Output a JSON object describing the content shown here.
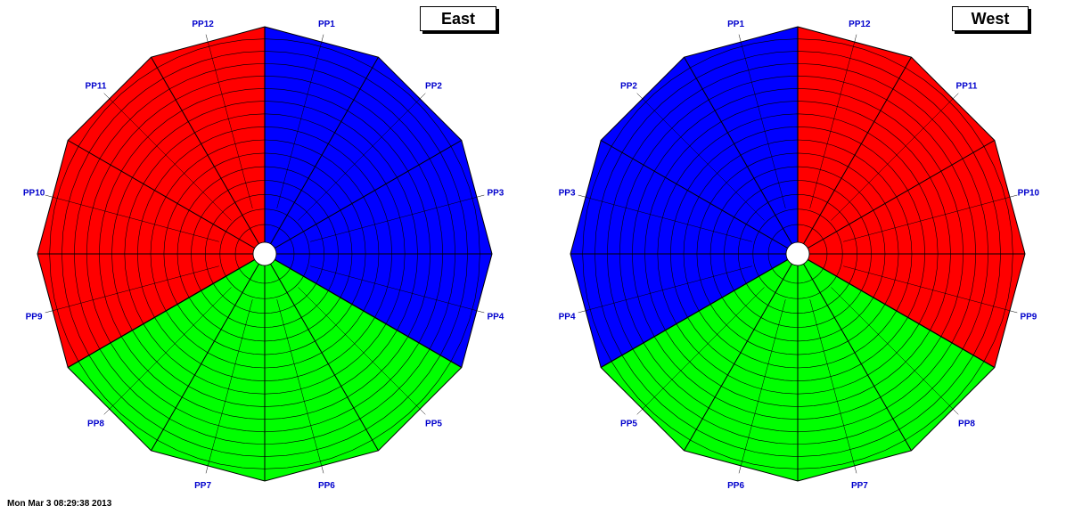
{
  "east": {
    "title": "East",
    "pp_labels": [
      "PP1",
      "PP2",
      "PP3",
      "PP4",
      "PP5",
      "PP6",
      "PP7",
      "PP8",
      "PP9",
      "PP10",
      "PP11",
      "PP12"
    ],
    "sectors": [
      {
        "name": "blue",
        "pp": [
          "PP1",
          "PP2",
          "PP3",
          "PP4"
        ],
        "color": "#0000ff"
      },
      {
        "name": "green",
        "pp": [
          "PP5",
          "PP6",
          "PP7",
          "PP8"
        ],
        "color": "#00ff00"
      },
      {
        "name": "red",
        "pp": [
          "PP9",
          "PP10",
          "PP11",
          "PP12"
        ],
        "color": "#ff0000"
      }
    ]
  },
  "west": {
    "title": "West",
    "pp_labels": [
      "PP12",
      "PP11",
      "PP10",
      "PP9",
      "PP8",
      "PP7",
      "PP6",
      "PP5",
      "PP4",
      "PP3",
      "PP2",
      "PP1"
    ],
    "sectors": [
      {
        "name": "red",
        "pp": [
          "PP12",
          "PP11",
          "PP10",
          "PP9"
        ],
        "color": "#ff0000"
      },
      {
        "name": "green",
        "pp": [
          "PP8",
          "PP7",
          "PP6",
          "PP5"
        ],
        "color": "#00ff00"
      },
      {
        "name": "blue",
        "pp": [
          "PP4",
          "PP3",
          "PP2",
          "PP1"
        ],
        "color": "#0000ff"
      }
    ]
  },
  "colors": {
    "label_text": "#0000cc",
    "grid": "#000000"
  },
  "footer_text": "Mon Mar 3 08:29:38 2013"
}
